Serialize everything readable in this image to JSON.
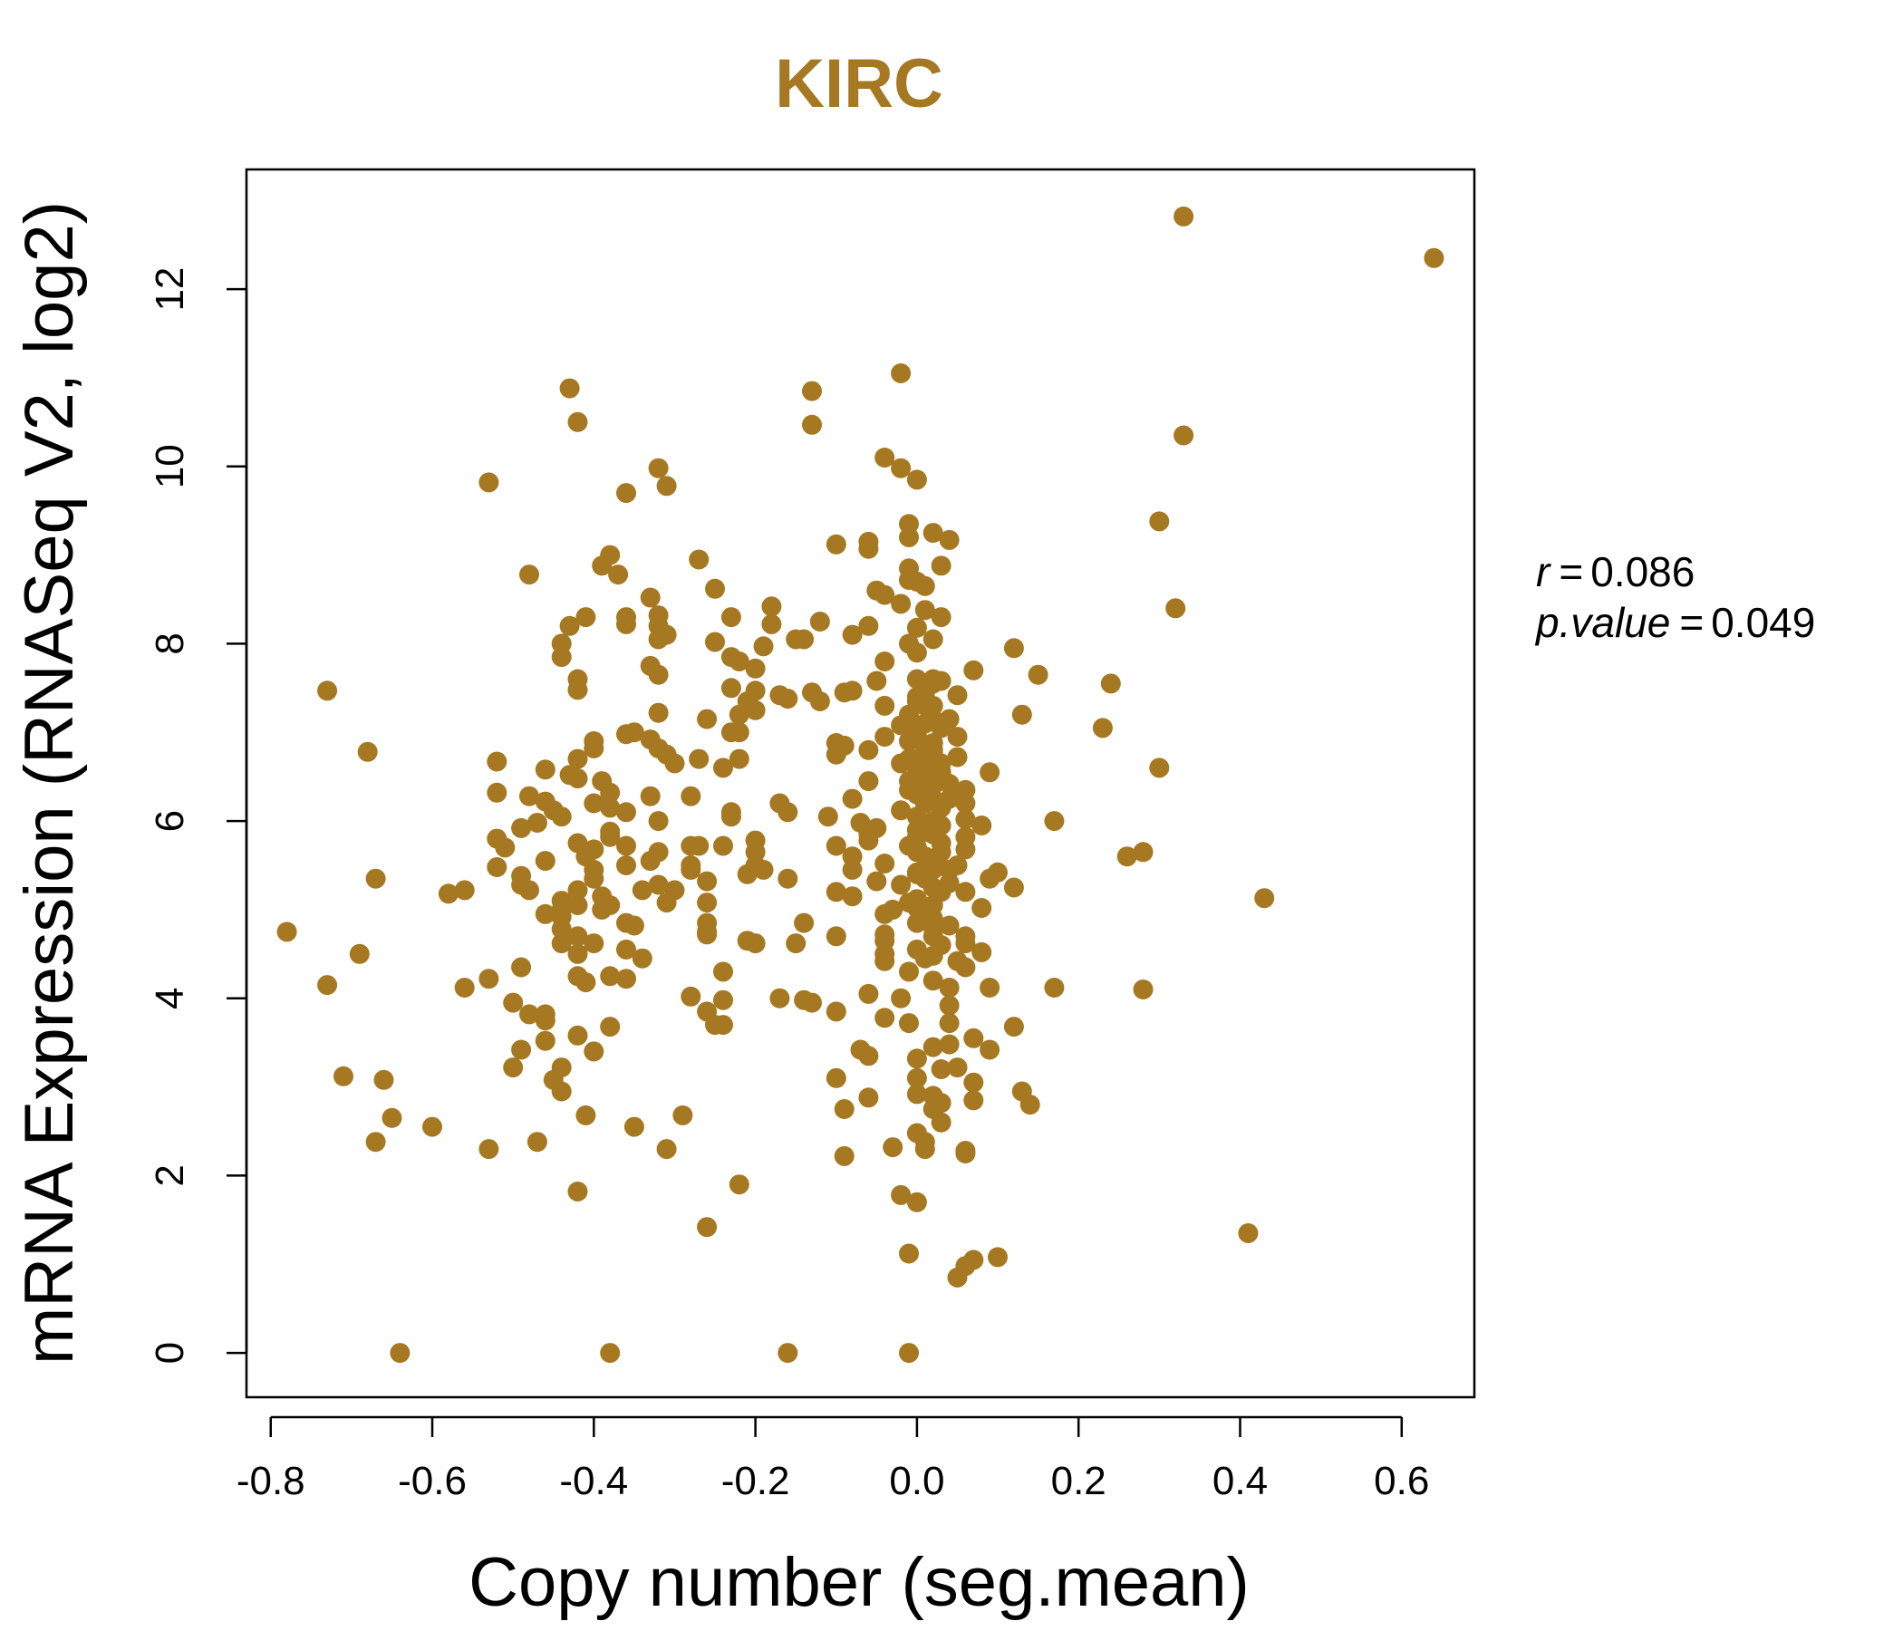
{
  "colors": {
    "accent": "#a67821",
    "axis": "#000000",
    "background": "#ffffff"
  },
  "chart_data": {
    "type": "scatter",
    "title": "KIRC",
    "xlabel": "Copy number (seg.mean)",
    "ylabel": "mRNA Expression (RNASeq V2, log2)",
    "xlim": [
      -0.83,
      0.69
    ],
    "ylim": [
      -0.5,
      13.35
    ],
    "x_ticks": [
      -0.8,
      -0.6,
      -0.4,
      -0.2,
      0.0,
      0.2,
      0.4,
      0.6
    ],
    "x_tick_labels": [
      "-0.8",
      "-0.6",
      "-0.4",
      "-0.2",
      "0.0",
      "0.2",
      "0.4",
      "0.6"
    ],
    "y_ticks": [
      0,
      2,
      4,
      6,
      8,
      10,
      12
    ],
    "y_tick_labels": [
      "0",
      "2",
      "4",
      "6",
      "8",
      "10",
      "12"
    ],
    "grid": false,
    "stats": {
      "r_label": "r",
      "r_value": "0.086",
      "p_label": "p.value",
      "p_value": "0.049"
    },
    "points": [
      [
        0.33,
        12.82
      ],
      [
        0.64,
        12.35
      ],
      [
        -0.02,
        11.05
      ],
      [
        -0.43,
        10.88
      ],
      [
        -0.13,
        10.85
      ],
      [
        -0.42,
        10.5
      ],
      [
        -0.13,
        10.47
      ],
      [
        0.33,
        10.35
      ],
      [
        -0.04,
        10.1
      ],
      [
        -0.02,
        9.98
      ],
      [
        -0.32,
        9.98
      ],
      [
        0.0,
        9.85
      ],
      [
        -0.53,
        9.82
      ],
      [
        -0.31,
        9.78
      ],
      [
        -0.36,
        9.7
      ],
      [
        0.3,
        9.38
      ],
      [
        -0.01,
        9.35
      ],
      [
        0.02,
        9.25
      ],
      [
        -0.01,
        9.2
      ],
      [
        0.04,
        9.17
      ],
      [
        -0.1,
        9.12
      ],
      [
        -0.06,
        9.15
      ],
      [
        -0.38,
        9.0
      ],
      [
        -0.06,
        9.07
      ],
      [
        -0.39,
        8.88
      ],
      [
        -0.27,
        8.95
      ],
      [
        0.03,
        8.88
      ],
      [
        -0.37,
        8.78
      ],
      [
        -0.48,
        8.78
      ],
      [
        -0.01,
        8.85
      ],
      [
        0.0,
        8.7
      ],
      [
        -0.01,
        8.72
      ],
      [
        0.01,
        8.65
      ],
      [
        -0.25,
        8.62
      ],
      [
        -0.05,
        8.6
      ],
      [
        -0.04,
        8.55
      ],
      [
        -0.33,
        8.52
      ],
      [
        -0.18,
        8.42
      ],
      [
        0.32,
        8.4
      ],
      [
        -0.02,
        8.45
      ],
      [
        0.01,
        8.38
      ],
      [
        -0.36,
        8.3
      ],
      [
        -0.32,
        8.32
      ],
      [
        -0.41,
        8.3
      ],
      [
        -0.23,
        8.3
      ],
      [
        -0.12,
        8.25
      ],
      [
        0.03,
        8.3
      ],
      [
        -0.36,
        8.22
      ],
      [
        -0.43,
        8.2
      ],
      [
        -0.32,
        8.2
      ],
      [
        -0.18,
        8.22
      ],
      [
        -0.06,
        8.2
      ],
      [
        0.0,
        8.18
      ],
      [
        -0.08,
        8.1
      ],
      [
        -0.31,
        8.1
      ],
      [
        -0.32,
        8.05
      ],
      [
        -0.44,
        8.0
      ],
      [
        -0.25,
        8.02
      ],
      [
        -0.15,
        8.05
      ],
      [
        -0.14,
        8.05
      ],
      [
        0.02,
        8.05
      ],
      [
        -0.19,
        7.97
      ],
      [
        0.12,
        7.95
      ],
      [
        -0.01,
        8.0
      ],
      [
        0.0,
        7.9
      ],
      [
        -0.44,
        7.85
      ],
      [
        -0.23,
        7.85
      ],
      [
        -0.22,
        7.8
      ],
      [
        -0.04,
        7.8
      ],
      [
        -0.33,
        7.75
      ],
      [
        -0.2,
        7.72
      ],
      [
        0.07,
        7.7
      ],
      [
        -0.32,
        7.65
      ],
      [
        0.15,
        7.65
      ],
      [
        -0.42,
        7.6
      ],
      [
        0.0,
        7.6
      ],
      [
        -0.05,
        7.58
      ],
      [
        0.03,
        7.58
      ],
      [
        0.02,
        7.55
      ],
      [
        0.24,
        7.55
      ],
      [
        -0.23,
        7.5
      ],
      [
        -0.73,
        7.47
      ],
      [
        -0.42,
        7.48
      ],
      [
        -0.2,
        7.47
      ],
      [
        -0.08,
        7.47
      ],
      [
        -0.09,
        7.45
      ],
      [
        -0.13,
        7.45
      ],
      [
        -0.17,
        7.42
      ],
      [
        0.05,
        7.42
      ],
      [
        -0.16,
        7.38
      ],
      [
        -0.21,
        7.35
      ],
      [
        0.0,
        7.35
      ],
      [
        -0.12,
        7.35
      ],
      [
        0.01,
        7.3
      ],
      [
        -0.04,
        7.3
      ],
      [
        -0.2,
        7.25
      ],
      [
        -0.22,
        7.2
      ],
      [
        -0.32,
        7.22
      ],
      [
        -0.01,
        7.2
      ],
      [
        0.13,
        7.2
      ],
      [
        -0.26,
        7.15
      ],
      [
        0.02,
        7.15
      ],
      [
        0.04,
        7.15
      ],
      [
        -0.02,
        7.08
      ],
      [
        0.23,
        7.05
      ],
      [
        -0.22,
        7.0
      ],
      [
        -0.35,
        7.0
      ],
      [
        -0.36,
        6.98
      ],
      [
        -0.23,
        7.0
      ],
      [
        0.0,
        7.0
      ],
      [
        0.05,
        6.95
      ],
      [
        -0.04,
        6.95
      ],
      [
        -0.33,
        6.92
      ],
      [
        -0.4,
        6.9
      ],
      [
        -0.1,
        6.88
      ],
      [
        0.02,
        6.88
      ],
      [
        -0.09,
        6.85
      ],
      [
        -0.32,
        6.82
      ],
      [
        -0.4,
        6.82
      ],
      [
        -0.06,
        6.8
      ],
      [
        -0.68,
        6.78
      ],
      [
        -0.31,
        6.75
      ],
      [
        -0.1,
        6.75
      ],
      [
        0.02,
        6.75
      ],
      [
        -0.42,
        6.7
      ],
      [
        -0.27,
        6.7
      ],
      [
        -0.22,
        6.7
      ],
      [
        -0.01,
        6.7
      ],
      [
        0.05,
        6.72
      ],
      [
        -0.52,
        6.67
      ],
      [
        -0.3,
        6.65
      ],
      [
        -0.24,
        6.6
      ],
      [
        -0.02,
        6.65
      ],
      [
        0.0,
        6.6
      ],
      [
        0.3,
        6.6
      ],
      [
        -0.46,
        6.58
      ],
      [
        0.03,
        6.55
      ],
      [
        0.09,
        6.55
      ],
      [
        -0.43,
        6.52
      ],
      [
        -0.42,
        6.48
      ],
      [
        -0.39,
        6.45
      ],
      [
        -0.06,
        6.45
      ],
      [
        0.04,
        6.42
      ],
      [
        0.0,
        6.42
      ],
      [
        0.06,
        6.35
      ],
      [
        -0.52,
        6.32
      ],
      [
        -0.38,
        6.32
      ],
      [
        -0.01,
        6.35
      ],
      [
        -0.48,
        6.28
      ],
      [
        -0.33,
        6.28
      ],
      [
        -0.28,
        6.28
      ],
      [
        -0.08,
        6.25
      ],
      [
        0.02,
        6.25
      ],
      [
        -0.46,
        6.22
      ],
      [
        -0.4,
        6.2
      ],
      [
        -0.38,
        6.15
      ],
      [
        -0.17,
        6.2
      ],
      [
        0.06,
        6.2
      ],
      [
        -0.45,
        6.12
      ],
      [
        -0.36,
        6.1
      ],
      [
        -0.23,
        6.1
      ],
      [
        -0.16,
        6.1
      ],
      [
        -0.02,
        6.12
      ],
      [
        -0.44,
        6.05
      ],
      [
        -0.23,
        6.05
      ],
      [
        -0.11,
        6.05
      ],
      [
        0.0,
        6.05
      ],
      [
        0.06,
        6.02
      ],
      [
        0.17,
        6.0
      ],
      [
        -0.47,
        5.98
      ],
      [
        -0.32,
        6.0
      ],
      [
        -0.07,
        5.98
      ],
      [
        0.03,
        5.95
      ],
      [
        0.08,
        5.95
      ],
      [
        -0.49,
        5.92
      ],
      [
        -0.38,
        5.88
      ],
      [
        -0.05,
        5.92
      ],
      [
        0.01,
        5.88
      ],
      [
        -0.06,
        5.85
      ],
      [
        -0.38,
        5.82
      ],
      [
        0.0,
        5.82
      ],
      [
        0.06,
        5.82
      ],
      [
        -0.52,
        5.8
      ],
      [
        -0.2,
        5.78
      ],
      [
        -0.06,
        5.78
      ],
      [
        -0.42,
        5.75
      ],
      [
        -0.36,
        5.72
      ],
      [
        -0.27,
        5.72
      ],
      [
        -0.28,
        5.72
      ],
      [
        -0.24,
        5.72
      ],
      [
        -0.1,
        5.72
      ],
      [
        -0.01,
        5.72
      ],
      [
        -0.51,
        5.7
      ],
      [
        -0.4,
        5.68
      ],
      [
        -0.32,
        5.65
      ],
      [
        -0.2,
        5.65
      ],
      [
        0.0,
        5.65
      ],
      [
        0.03,
        5.65
      ],
      [
        0.06,
        5.68
      ],
      [
        0.28,
        5.65
      ],
      [
        -0.41,
        5.6
      ],
      [
        -0.08,
        5.6
      ],
      [
        0.26,
        5.6
      ],
      [
        -0.46,
        5.55
      ],
      [
        -0.33,
        5.55
      ],
      [
        -0.36,
        5.5
      ],
      [
        -0.28,
        5.5
      ],
      [
        -0.2,
        5.5
      ],
      [
        -0.04,
        5.52
      ],
      [
        0.05,
        5.5
      ],
      [
        -0.52,
        5.48
      ],
      [
        -0.4,
        5.45
      ],
      [
        -0.28,
        5.45
      ],
      [
        -0.19,
        5.45
      ],
      [
        -0.08,
        5.45
      ],
      [
        0.02,
        5.45
      ],
      [
        -0.21,
        5.4
      ],
      [
        0.0,
        5.42
      ],
      [
        0.1,
        5.42
      ],
      [
        -0.49,
        5.38
      ],
      [
        -0.4,
        5.35
      ],
      [
        -0.16,
        5.35
      ],
      [
        -0.67,
        5.35
      ],
      [
        0.09,
        5.35
      ],
      [
        -0.26,
        5.32
      ],
      [
        -0.05,
        5.32
      ],
      [
        0.04,
        5.3
      ],
      [
        -0.49,
        5.28
      ],
      [
        -0.32,
        5.28
      ],
      [
        -0.02,
        5.28
      ],
      [
        0.12,
        5.25
      ],
      [
        -0.56,
        5.22
      ],
      [
        -0.48,
        5.22
      ],
      [
        -0.42,
        5.22
      ],
      [
        -0.34,
        5.22
      ],
      [
        -0.3,
        5.22
      ],
      [
        -0.1,
        5.2
      ],
      [
        0.06,
        5.2
      ],
      [
        -0.58,
        5.18
      ],
      [
        -0.39,
        5.15
      ],
      [
        -0.08,
        5.15
      ],
      [
        0.43,
        5.13
      ],
      [
        0.0,
        5.12
      ],
      [
        -0.44,
        5.1
      ],
      [
        -0.31,
        5.08
      ],
      [
        -0.26,
        5.08
      ],
      [
        -0.01,
        5.08
      ],
      [
        -0.42,
        5.05
      ],
      [
        -0.38,
        5.05
      ],
      [
        0.0,
        5.02
      ],
      [
        0.08,
        5.02
      ],
      [
        -0.44,
        5.0
      ],
      [
        -0.39,
        5.0
      ],
      [
        -0.03,
        5.0
      ],
      [
        -0.46,
        4.95
      ],
      [
        -0.44,
        4.92
      ],
      [
        -0.04,
        4.95
      ],
      [
        0.02,
        4.9
      ],
      [
        -0.26,
        4.85
      ],
      [
        -0.36,
        4.85
      ],
      [
        -0.35,
        4.82
      ],
      [
        0.04,
        4.82
      ],
      [
        -0.14,
        4.85
      ],
      [
        -0.44,
        4.78
      ],
      [
        -0.26,
        4.75
      ],
      [
        -0.26,
        4.72
      ],
      [
        -0.78,
        4.75
      ],
      [
        -0.04,
        4.72
      ],
      [
        0.06,
        4.7
      ],
      [
        -0.42,
        4.7
      ],
      [
        -0.1,
        4.7
      ],
      [
        0.02,
        4.7
      ],
      [
        -0.21,
        4.65
      ],
      [
        -0.2,
        4.62
      ],
      [
        -0.44,
        4.62
      ],
      [
        -0.4,
        4.62
      ],
      [
        -0.15,
        4.62
      ],
      [
        -0.04,
        4.65
      ],
      [
        0.06,
        4.62
      ],
      [
        -0.36,
        4.55
      ],
      [
        0.0,
        4.55
      ],
      [
        0.08,
        4.52
      ],
      [
        -0.69,
        4.5
      ],
      [
        -0.42,
        4.5
      ],
      [
        -0.04,
        4.5
      ],
      [
        0.02,
        4.48
      ],
      [
        -0.34,
        4.45
      ],
      [
        -0.04,
        4.42
      ],
      [
        0.05,
        4.42
      ],
      [
        -0.49,
        4.35
      ],
      [
        -0.01,
        4.3
      ],
      [
        0.06,
        4.35
      ],
      [
        -0.24,
        4.3
      ],
      [
        -0.42,
        4.25
      ],
      [
        -0.38,
        4.25
      ],
      [
        -0.53,
        4.22
      ],
      [
        -0.36,
        4.22
      ],
      [
        0.02,
        4.2
      ],
      [
        -0.41,
        4.18
      ],
      [
        -0.73,
        4.15
      ],
      [
        -0.56,
        4.12
      ],
      [
        0.17,
        4.12
      ],
      [
        0.09,
        4.12
      ],
      [
        0.04,
        4.12
      ],
      [
        0.28,
        4.1
      ],
      [
        -0.06,
        4.05
      ],
      [
        -0.28,
        4.02
      ],
      [
        -0.17,
        4.0
      ],
      [
        -0.14,
        3.98
      ],
      [
        -0.24,
        3.98
      ],
      [
        -0.02,
        4.0
      ],
      [
        -0.5,
        3.95
      ],
      [
        -0.13,
        3.95
      ],
      [
        0.04,
        3.92
      ],
      [
        -0.48,
        3.82
      ],
      [
        -0.46,
        3.82
      ],
      [
        -0.26,
        3.85
      ],
      [
        -0.1,
        3.85
      ],
      [
        -0.04,
        3.78
      ],
      [
        -0.46,
        3.75
      ],
      [
        -0.01,
        3.72
      ],
      [
        0.04,
        3.72
      ],
      [
        -0.38,
        3.68
      ],
      [
        -0.25,
        3.7
      ],
      [
        -0.24,
        3.7
      ],
      [
        0.12,
        3.68
      ],
      [
        -0.42,
        3.58
      ],
      [
        0.07,
        3.55
      ],
      [
        -0.46,
        3.52
      ],
      [
        0.04,
        3.48
      ],
      [
        0.02,
        3.45
      ],
      [
        -0.49,
        3.42
      ],
      [
        -0.4,
        3.4
      ],
      [
        -0.07,
        3.42
      ],
      [
        0.09,
        3.42
      ],
      [
        -0.06,
        3.35
      ],
      [
        0.0,
        3.32
      ],
      [
        -0.5,
        3.22
      ],
      [
        -0.44,
        3.22
      ],
      [
        0.05,
        3.22
      ],
      [
        0.03,
        3.2
      ],
      [
        -0.71,
        3.12
      ],
      [
        -0.45,
        3.08
      ],
      [
        -0.66,
        3.08
      ],
      [
        -0.1,
        3.1
      ],
      [
        0.0,
        3.1
      ],
      [
        0.07,
        3.05
      ],
      [
        0.13,
        2.95
      ],
      [
        -0.44,
        2.95
      ],
      [
        0.0,
        2.92
      ],
      [
        0.02,
        2.9
      ],
      [
        -0.06,
        2.88
      ],
      [
        0.07,
        2.85
      ],
      [
        0.03,
        2.82
      ],
      [
        0.14,
        2.8
      ],
      [
        -0.09,
        2.75
      ],
      [
        -0.29,
        2.68
      ],
      [
        -0.41,
        2.68
      ],
      [
        0.02,
        2.75
      ],
      [
        -0.65,
        2.65
      ],
      [
        0.03,
        2.6
      ],
      [
        -0.6,
        2.55
      ],
      [
        -0.35,
        2.55
      ],
      [
        0.0,
        2.48
      ],
      [
        -0.67,
        2.38
      ],
      [
        -0.47,
        2.38
      ],
      [
        0.01,
        2.38
      ],
      [
        -0.53,
        2.3
      ],
      [
        -0.31,
        2.3
      ],
      [
        -0.03,
        2.32
      ],
      [
        0.01,
        2.3
      ],
      [
        0.06,
        2.28
      ],
      [
        0.06,
        2.25
      ],
      [
        -0.09,
        2.22
      ],
      [
        -0.22,
        1.9
      ],
      [
        -0.42,
        1.82
      ],
      [
        -0.02,
        1.78
      ],
      [
        0.0,
        1.7
      ],
      [
        -0.26,
        1.42
      ],
      [
        0.41,
        1.35
      ],
      [
        -0.01,
        1.12
      ],
      [
        0.1,
        1.08
      ],
      [
        0.07,
        1.05
      ],
      [
        0.06,
        0.98
      ],
      [
        0.05,
        0.85
      ],
      [
        -0.64,
        0.0
      ],
      [
        -0.38,
        0.0
      ],
      [
        -0.16,
        0.0
      ],
      [
        -0.01,
        0.0
      ],
      [
        0.0,
        7.4
      ],
      [
        0.01,
        7.45
      ],
      [
        0.02,
        7.3
      ],
      [
        0.01,
        7.1
      ],
      [
        0.03,
        7.05
      ],
      [
        -0.01,
        6.9
      ],
      [
        0.02,
        6.8
      ],
      [
        0.0,
        6.7
      ],
      [
        0.01,
        6.55
      ],
      [
        0.03,
        6.5
      ],
      [
        0.02,
        6.4
      ],
      [
        0.0,
        6.3
      ],
      [
        0.01,
        6.2
      ],
      [
        0.03,
        6.15
      ],
      [
        0.02,
        6.0
      ],
      [
        0.01,
        5.95
      ],
      [
        0.0,
        5.9
      ],
      [
        0.02,
        5.85
      ],
      [
        0.03,
        5.75
      ],
      [
        0.01,
        5.6
      ],
      [
        0.02,
        5.55
      ],
      [
        0.0,
        5.4
      ],
      [
        0.01,
        5.35
      ],
      [
        0.03,
        5.2
      ],
      [
        0.02,
        5.05
      ],
      [
        0.01,
        4.95
      ],
      [
        0.0,
        4.85
      ],
      [
        0.02,
        4.8
      ],
      [
        0.03,
        4.6
      ],
      [
        0.01,
        4.45
      ],
      [
        0.02,
        6.6
      ],
      [
        0.0,
        6.95
      ],
      [
        0.03,
        6.65
      ],
      [
        0.01,
        6.85
      ],
      [
        0.02,
        7.6
      ],
      [
        -0.01,
        6.45
      ],
      [
        0.04,
        6.25
      ],
      [
        0.0,
        5.7
      ],
      [
        0.04,
        5.45
      ],
      [
        0.02,
        5.25
      ]
    ]
  }
}
